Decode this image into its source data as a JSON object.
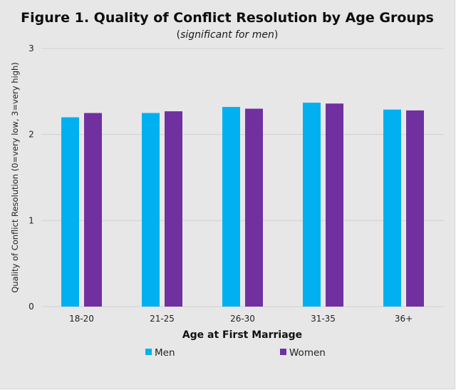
{
  "chart_data": {
    "type": "bar",
    "title": "Figure 1. Quality of Conflict Resolution by Age Groups",
    "subtitle_parts": [
      "(",
      "significant for men",
      ")"
    ],
    "xlabel": "Age at First Marriage",
    "ylabel": "Quality of Conflict Resolution (0=very low, 3=very high)",
    "categories": [
      "18-20",
      "21-25",
      "26-30",
      "31-35",
      "36+"
    ],
    "series": [
      {
        "name": "Men",
        "color": "#00b0f0",
        "values": [
          2.2,
          2.25,
          2.32,
          2.37,
          2.29
        ]
      },
      {
        "name": "Women",
        "color": "#7030a0",
        "values": [
          2.25,
          2.27,
          2.3,
          2.36,
          2.28
        ]
      }
    ],
    "ylim": [
      0,
      3
    ],
    "yticks": [
      0,
      1,
      2,
      3
    ],
    "grid": true,
    "legend_position": "bottom"
  }
}
